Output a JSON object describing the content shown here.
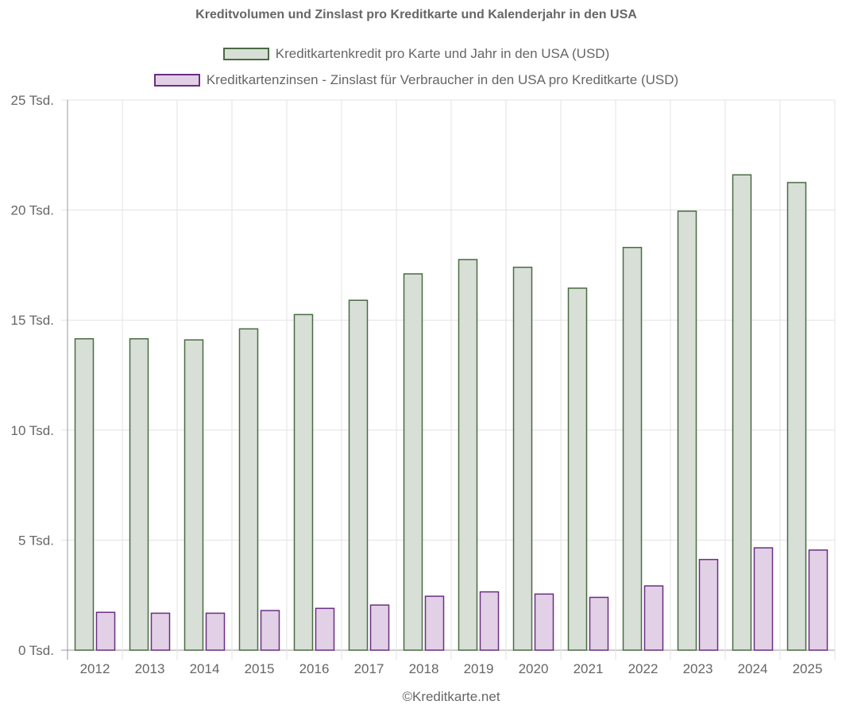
{
  "chart_data": {
    "type": "bar",
    "title": "Kreditvolumen und Zinslast pro Kreditkarte und Kalenderjahr in den USA",
    "categories": [
      "2012",
      "2013",
      "2014",
      "2015",
      "2016",
      "2017",
      "2018",
      "2019",
      "2020",
      "2021",
      "2022",
      "2023",
      "2024",
      "2025"
    ],
    "series": [
      {
        "name": "Kreditkartenkredit pro Karte und Jahr in den USA (USD)",
        "values": [
          14150,
          14150,
          14100,
          14600,
          15250,
          15900,
          17100,
          17750,
          17400,
          16450,
          18300,
          19950,
          21600,
          21250
        ],
        "color": "#d7dfd7",
        "border": "#4a6b43"
      },
      {
        "name": "Kreditkartenzinsen - Zinslast für Verbraucher in den USA pro Kreditkarte (USD)",
        "values": [
          1720,
          1680,
          1680,
          1800,
          1900,
          2050,
          2450,
          2650,
          2550,
          2400,
          2920,
          4120,
          4650,
          4550
        ],
        "color": "#e2d0e6",
        "border": "#6a2f80"
      }
    ],
    "ylim": [
      0,
      25000
    ],
    "y_ticks": [
      {
        "value": 0,
        "label": "0 Tsd."
      },
      {
        "value": 5000,
        "label": "5 Tsd."
      },
      {
        "value": 10000,
        "label": "10 Tsd."
      },
      {
        "value": 15000,
        "label": "15 Tsd."
      },
      {
        "value": 20000,
        "label": "20 Tsd."
      },
      {
        "value": 25000,
        "label": "25 Tsd."
      }
    ],
    "grid": true,
    "legend_position": "top"
  },
  "footer": "©Kreditkarte.net"
}
